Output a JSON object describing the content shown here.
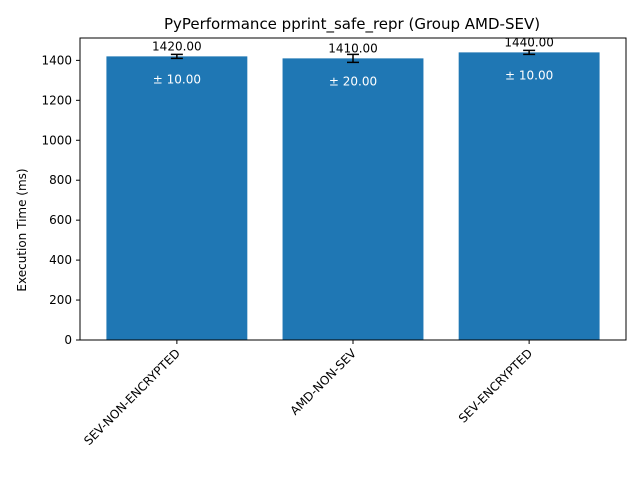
{
  "chart_data": {
    "type": "bar",
    "title": "PyPerformance pprint_safe_repr (Group AMD-SEV)",
    "xlabel": "",
    "ylabel": "Execution Time (ms)",
    "categories": [
      "SEV-NON-ENCRYPTED",
      "AMD-NON-SEV",
      "SEV-ENCRYPTED"
    ],
    "values": [
      1420,
      1410,
      1440
    ],
    "errors": [
      10,
      20,
      10
    ],
    "value_labels": [
      "1420.00",
      "1410.00",
      "1440.00"
    ],
    "error_labels": [
      "± 10.00",
      "± 20.00",
      "± 10.00"
    ],
    "ylim": [
      0,
      1512
    ],
    "yticks": [
      0,
      200,
      400,
      600,
      800,
      1000,
      1200,
      1400
    ],
    "bar_color": "#1f77b4",
    "grid": false,
    "legend": "none"
  }
}
